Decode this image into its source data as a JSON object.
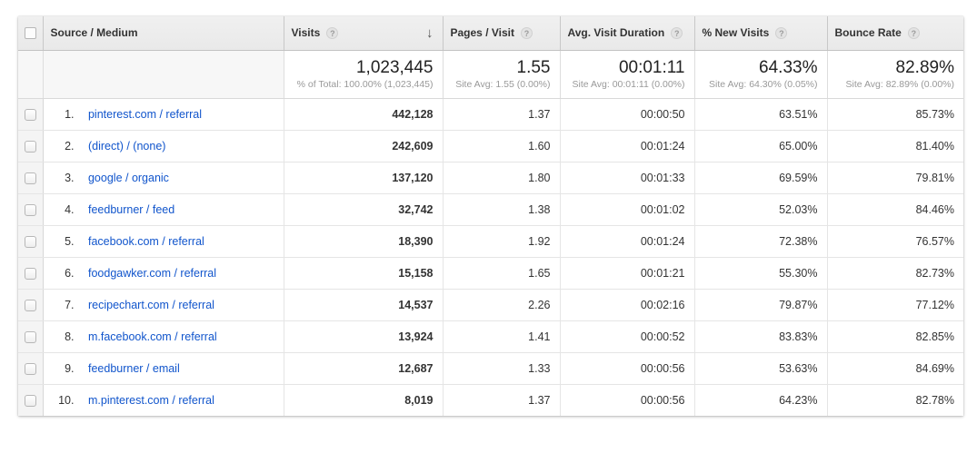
{
  "colors": {
    "link_blue": "#1155cc",
    "header_text": "#333333",
    "header_background": "#ececec",
    "summary_subtext": "#999999"
  },
  "icons": {
    "help_glyph": "?",
    "sort_descending_glyph": "↓"
  },
  "table": {
    "columns": {
      "source_medium": {
        "label": "Source / Medium"
      },
      "visits": {
        "label": "Visits"
      },
      "pages_per_visit": {
        "label": "Pages / Visit"
      },
      "avg_visit_duration": {
        "label": "Avg. Visit Duration"
      },
      "pct_new_visits": {
        "label": "% New Visits"
      },
      "bounce_rate": {
        "label": "Bounce Rate"
      }
    },
    "summary": {
      "visits": {
        "value": "1,023,445",
        "subtext": "% of Total: 100.00% (1,023,445)"
      },
      "pages_per_visit": {
        "value": "1.55",
        "subtext": "Site Avg: 1.55 (0.00%)"
      },
      "avg_visit_duration": {
        "value": "00:01:11",
        "subtext": "Site Avg: 00:01:11 (0.00%)"
      },
      "pct_new_visits": {
        "value": "64.33%",
        "subtext": "Site Avg: 64.30% (0.05%)"
      },
      "bounce_rate": {
        "value": "82.89%",
        "subtext": "Site Avg: 82.89% (0.00%)"
      }
    },
    "rows": [
      {
        "rank": "1.",
        "source_medium": "pinterest.com / referral",
        "visits": "442,128",
        "pages_per_visit": "1.37",
        "avg_visit_duration": "00:00:50",
        "pct_new_visits": "63.51%",
        "bounce_rate": "85.73%"
      },
      {
        "rank": "2.",
        "source_medium": "(direct) / (none)",
        "visits": "242,609",
        "pages_per_visit": "1.60",
        "avg_visit_duration": "00:01:24",
        "pct_new_visits": "65.00%",
        "bounce_rate": "81.40%"
      },
      {
        "rank": "3.",
        "source_medium": "google / organic",
        "visits": "137,120",
        "pages_per_visit": "1.80",
        "avg_visit_duration": "00:01:33",
        "pct_new_visits": "69.59%",
        "bounce_rate": "79.81%"
      },
      {
        "rank": "4.",
        "source_medium": "feedburner / feed",
        "visits": "32,742",
        "pages_per_visit": "1.38",
        "avg_visit_duration": "00:01:02",
        "pct_new_visits": "52.03%",
        "bounce_rate": "84.46%"
      },
      {
        "rank": "5.",
        "source_medium": "facebook.com / referral",
        "visits": "18,390",
        "pages_per_visit": "1.92",
        "avg_visit_duration": "00:01:24",
        "pct_new_visits": "72.38%",
        "bounce_rate": "76.57%"
      },
      {
        "rank": "6.",
        "source_medium": "foodgawker.com / referral",
        "visits": "15,158",
        "pages_per_visit": "1.65",
        "avg_visit_duration": "00:01:21",
        "pct_new_visits": "55.30%",
        "bounce_rate": "82.73%"
      },
      {
        "rank": "7.",
        "source_medium": "recipechart.com / referral",
        "visits": "14,537",
        "pages_per_visit": "2.26",
        "avg_visit_duration": "00:02:16",
        "pct_new_visits": "79.87%",
        "bounce_rate": "77.12%"
      },
      {
        "rank": "8.",
        "source_medium": "m.facebook.com / referral",
        "visits": "13,924",
        "pages_per_visit": "1.41",
        "avg_visit_duration": "00:00:52",
        "pct_new_visits": "83.83%",
        "bounce_rate": "82.85%"
      },
      {
        "rank": "9.",
        "source_medium": "feedburner / email",
        "visits": "12,687",
        "pages_per_visit": "1.33",
        "avg_visit_duration": "00:00:56",
        "pct_new_visits": "53.63%",
        "bounce_rate": "84.69%"
      },
      {
        "rank": "10.",
        "source_medium": "m.pinterest.com / referral",
        "visits": "8,019",
        "pages_per_visit": "1.37",
        "avg_visit_duration": "00:00:56",
        "pct_new_visits": "64.23%",
        "bounce_rate": "82.78%"
      }
    ]
  }
}
